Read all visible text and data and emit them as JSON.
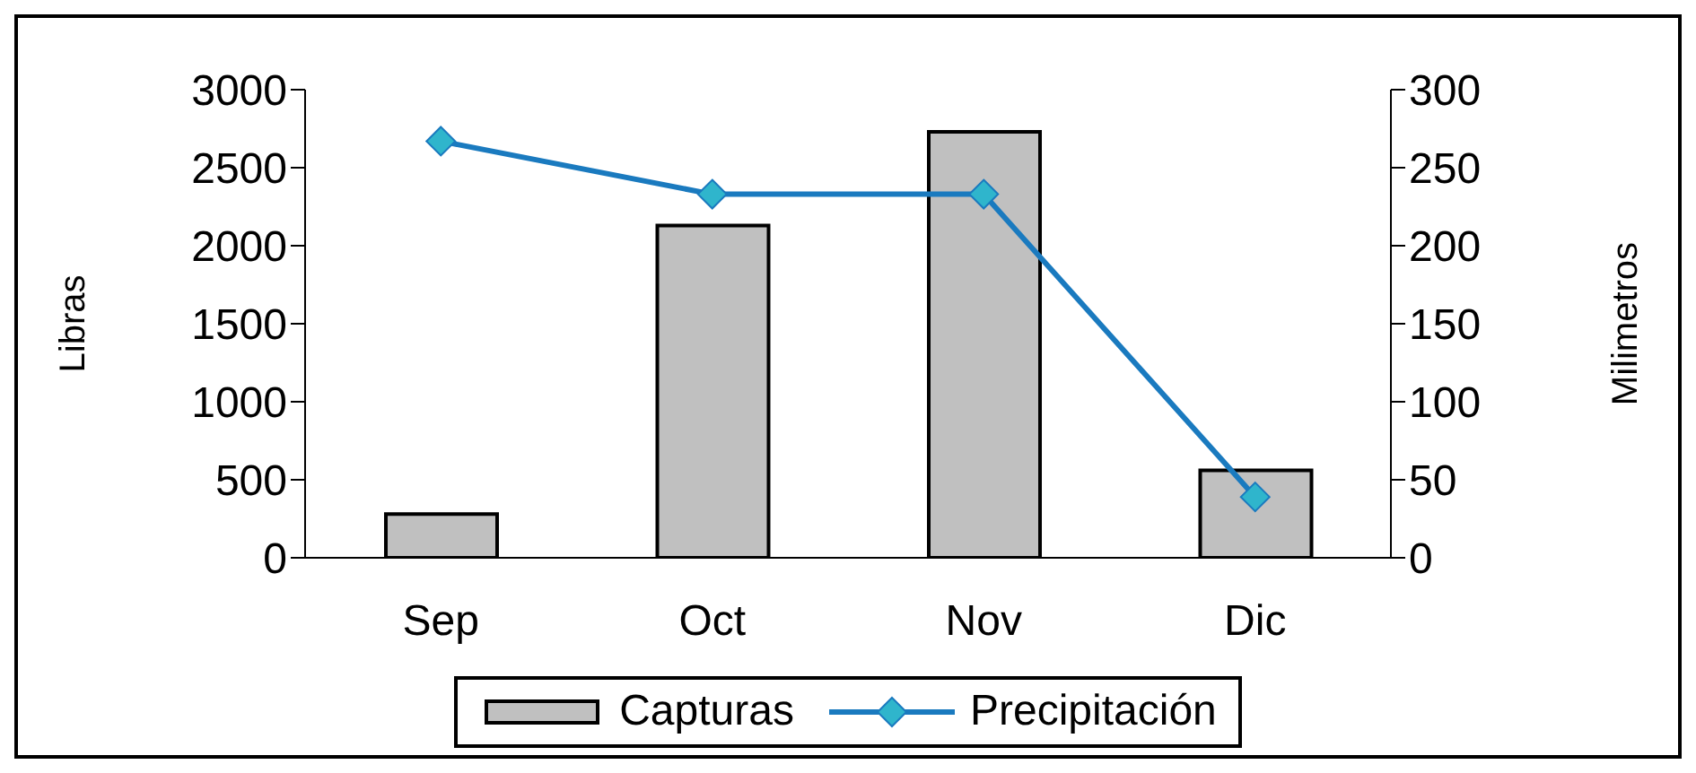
{
  "chart_data": {
    "type": "bar",
    "categories": [
      "Sep",
      "Oct",
      "Nov",
      "Dic"
    ],
    "ylabel": "Libras",
    "y2label": "Milimetros",
    "ylim": [
      0,
      3000
    ],
    "yticks": [
      0,
      500,
      1000,
      1500,
      2000,
      2500,
      3000
    ],
    "y2lim": [
      0,
      300
    ],
    "y2ticks": [
      0,
      50,
      100,
      150,
      200,
      250,
      300
    ],
    "legend": "bottom",
    "marker": "diamond",
    "series": [
      {
        "name": "Capturas",
        "color": "#c0c0c0",
        "values": [
          280,
          2130,
          2730,
          560
        ]
      },
      {
        "name": "Precipitación",
        "type": "line",
        "axis": "y2",
        "color": "#1a7abf",
        "values": [
          267,
          233,
          233,
          39
        ]
      }
    ]
  }
}
